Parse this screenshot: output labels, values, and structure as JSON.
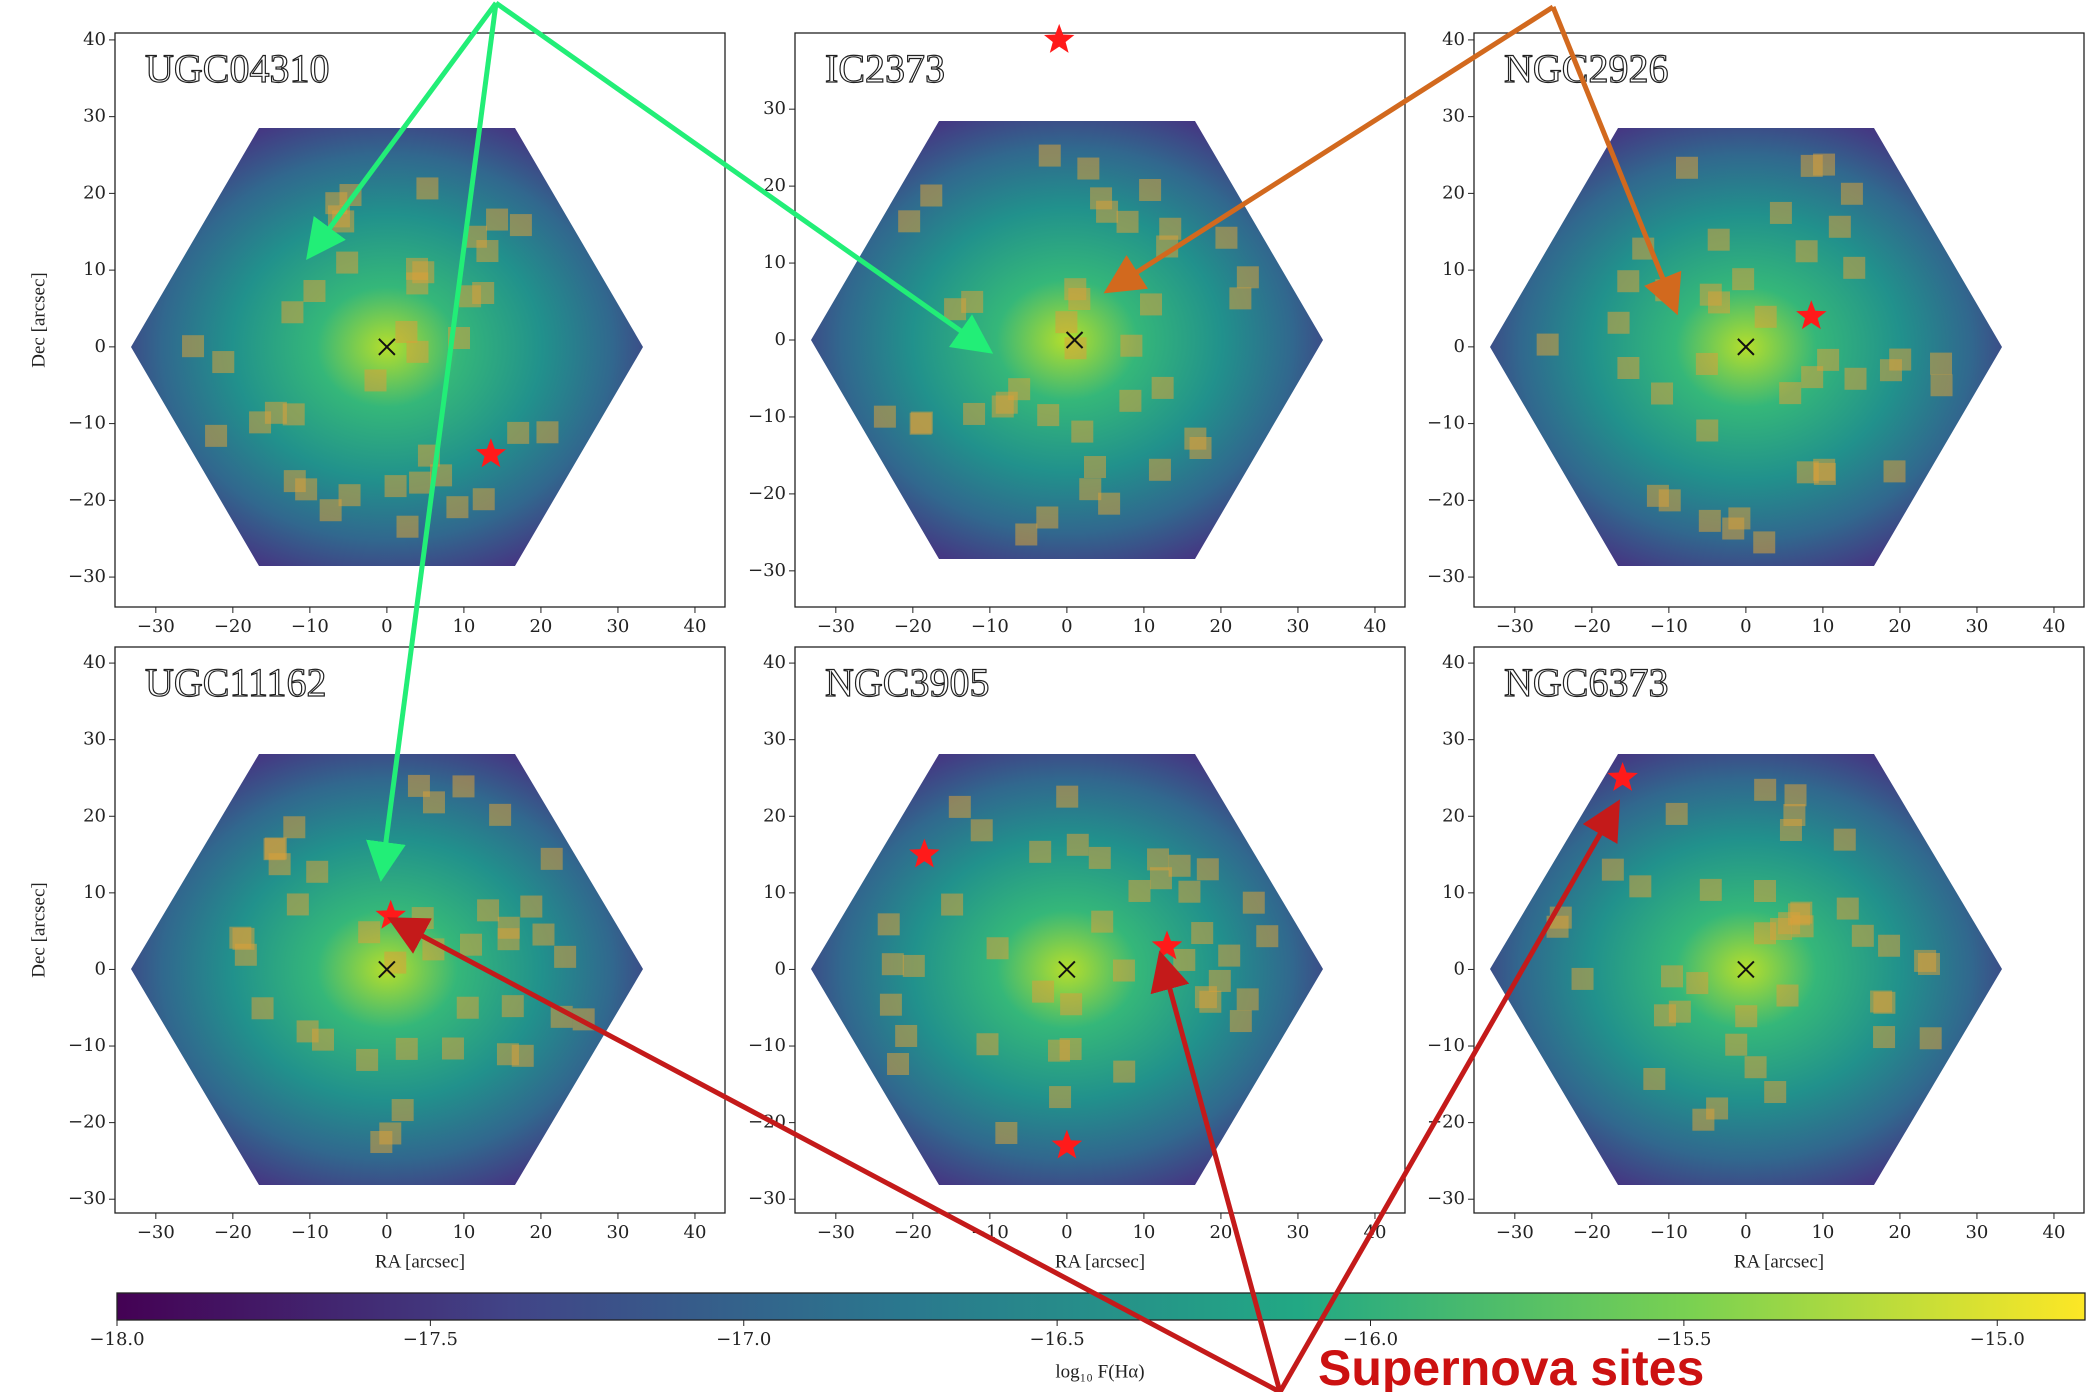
{
  "chart_data": [
    {
      "type": "scatter",
      "title": "UGC04310",
      "ylabel": "Dec [arcsec]",
      "xlim": [
        -35.3,
        43.9
      ],
      "ylim": [
        -33.9,
        40.9
      ],
      "xticks": [
        {
          "value": -30,
          "label": "−30"
        },
        {
          "value": -20,
          "label": "−20"
        },
        {
          "value": -10,
          "label": "−10"
        },
        0,
        10,
        20,
        30,
        40
      ],
      "yticks": [
        {
          "value": -30,
          "label": "−30"
        },
        {
          "value": -20,
          "label": "−20"
        },
        {
          "value": -10,
          "label": "−10"
        },
        0,
        10,
        20,
        30,
        40
      ],
      "series": [
        {
          "marker": "x",
          "color": "#111111",
          "x": [
            0
          ],
          "values": [
            0
          ]
        },
        {
          "marker": "star",
          "color": "#ff1a1a",
          "x": [
            13.5
          ],
          "values": [
            -14
          ]
        }
      ]
    },
    {
      "type": "scatter",
      "title": "IC2373",
      "xlim": [
        -35.3,
        43.9
      ],
      "ylim": [
        -34.7,
        39.9
      ],
      "xticks": [
        {
          "value": -30,
          "label": "−30"
        },
        {
          "value": -20,
          "label": "−20"
        },
        {
          "value": -10,
          "label": "−10"
        },
        0,
        10,
        20,
        30,
        40
      ],
      "yticks": [
        {
          "value": -30,
          "label": "−30"
        },
        {
          "value": -20,
          "label": "−20"
        },
        {
          "value": -10,
          "label": "−10"
        },
        0,
        10,
        20,
        30
      ],
      "series": [
        {
          "marker": "x",
          "color": "#111111",
          "x": [
            1
          ],
          "values": [
            0
          ]
        },
        {
          "marker": "star",
          "color": "#ff1a1a",
          "x": [
            -1
          ],
          "values": [
            39
          ]
        }
      ]
    },
    {
      "type": "scatter",
      "title": "NGC2926",
      "xlim": [
        -35.3,
        43.9
      ],
      "ylim": [
        -33.9,
        40.9
      ],
      "xticks": [
        {
          "value": -30,
          "label": "−30"
        },
        {
          "value": -20,
          "label": "−20"
        },
        {
          "value": -10,
          "label": "−10"
        },
        0,
        10,
        20,
        30,
        40
      ],
      "yticks": [
        {
          "value": -30,
          "label": "−30"
        },
        {
          "value": -20,
          "label": "−20"
        },
        {
          "value": -10,
          "label": "−10"
        },
        0,
        10,
        20,
        30,
        40
      ],
      "series": [
        {
          "marker": "x",
          "color": "#111111",
          "x": [
            0
          ],
          "values": [
            0
          ]
        },
        {
          "marker": "star",
          "color": "#ff1a1a",
          "x": [
            8.5
          ],
          "values": [
            4
          ]
        }
      ]
    },
    {
      "type": "scatter",
      "title": "UGC11162",
      "xlabel": "RA [arcsec]",
      "ylabel": "Dec [arcsec]",
      "xlim": [
        -35.3,
        43.9
      ],
      "ylim": [
        -31.8,
        42.1
      ],
      "xticks": [
        {
          "value": -30,
          "label": "−30"
        },
        {
          "value": -20,
          "label": "−20"
        },
        {
          "value": -10,
          "label": "−10"
        },
        0,
        10,
        20,
        30,
        40
      ],
      "yticks": [
        {
          "value": -30,
          "label": "−30"
        },
        {
          "value": -20,
          "label": "−20"
        },
        {
          "value": -10,
          "label": "−10"
        },
        0,
        10,
        20,
        30,
        40
      ],
      "series": [
        {
          "marker": "x",
          "color": "#111111",
          "x": [
            0
          ],
          "values": [
            0
          ]
        },
        {
          "marker": "star",
          "color": "#ff1a1a",
          "x": [
            0.5
          ],
          "values": [
            7
          ]
        }
      ]
    },
    {
      "type": "scatter",
      "title": "NGC3905",
      "xlabel": "RA [arcsec]",
      "xlim": [
        -35.3,
        43.9
      ],
      "ylim": [
        -31.8,
        42.1
      ],
      "xticks": [
        {
          "value": -30,
          "label": "−30"
        },
        {
          "value": -20,
          "label": "−20"
        },
        {
          "value": -10,
          "label": "−10"
        },
        0,
        10,
        20,
        30,
        40
      ],
      "yticks": [
        {
          "value": -30,
          "label": "−30"
        },
        {
          "value": -20,
          "label": "−20"
        },
        {
          "value": -10,
          "label": "−10"
        },
        0,
        10,
        20,
        30,
        40
      ],
      "series": [
        {
          "marker": "x",
          "color": "#111111",
          "x": [
            0
          ],
          "values": [
            0
          ]
        },
        {
          "marker": "star",
          "color": "#ff1a1a",
          "x": [
            -18.5,
            13,
            0
          ],
          "values": [
            15,
            3,
            -23
          ]
        }
      ]
    },
    {
      "type": "scatter",
      "title": "NGC6373",
      "xlabel": "RA [arcsec]",
      "xlim": [
        -35.3,
        43.9
      ],
      "ylim": [
        -31.8,
        42.1
      ],
      "xticks": [
        {
          "value": -30,
          "label": "−30"
        },
        {
          "value": -20,
          "label": "−20"
        },
        {
          "value": -10,
          "label": "−10"
        },
        0,
        10,
        20,
        30,
        40
      ],
      "yticks": [
        {
          "value": -30,
          "label": "−30"
        },
        {
          "value": -20,
          "label": "−20"
        },
        {
          "value": -10,
          "label": "−10"
        },
        0,
        10,
        20,
        30,
        40
      ],
      "series": [
        {
          "marker": "x",
          "color": "#111111",
          "x": [
            0
          ],
          "values": [
            0
          ]
        },
        {
          "marker": "star",
          "color": "#ff1a1a",
          "x": [
            -16
          ],
          "values": [
            25
          ]
        }
      ]
    },
    {
      "type": "colorbar",
      "xlabel": "log₁₀ F(Hα)",
      "xlim": [
        -18,
        -14.86
      ],
      "xticks": [
        {
          "value": -18,
          "label": "−18.0"
        },
        {
          "value": -17.5,
          "label": "−17.5"
        },
        {
          "value": -17,
          "label": "−17.0"
        },
        {
          "value": -16.5,
          "label": "−16.5"
        },
        {
          "value": -16,
          "label": "−16.0"
        },
        {
          "value": -15.5,
          "label": "−15.5"
        },
        {
          "value": -15,
          "label": "−15.0"
        }
      ]
    }
  ],
  "annotation": "Supernova sites"
}
